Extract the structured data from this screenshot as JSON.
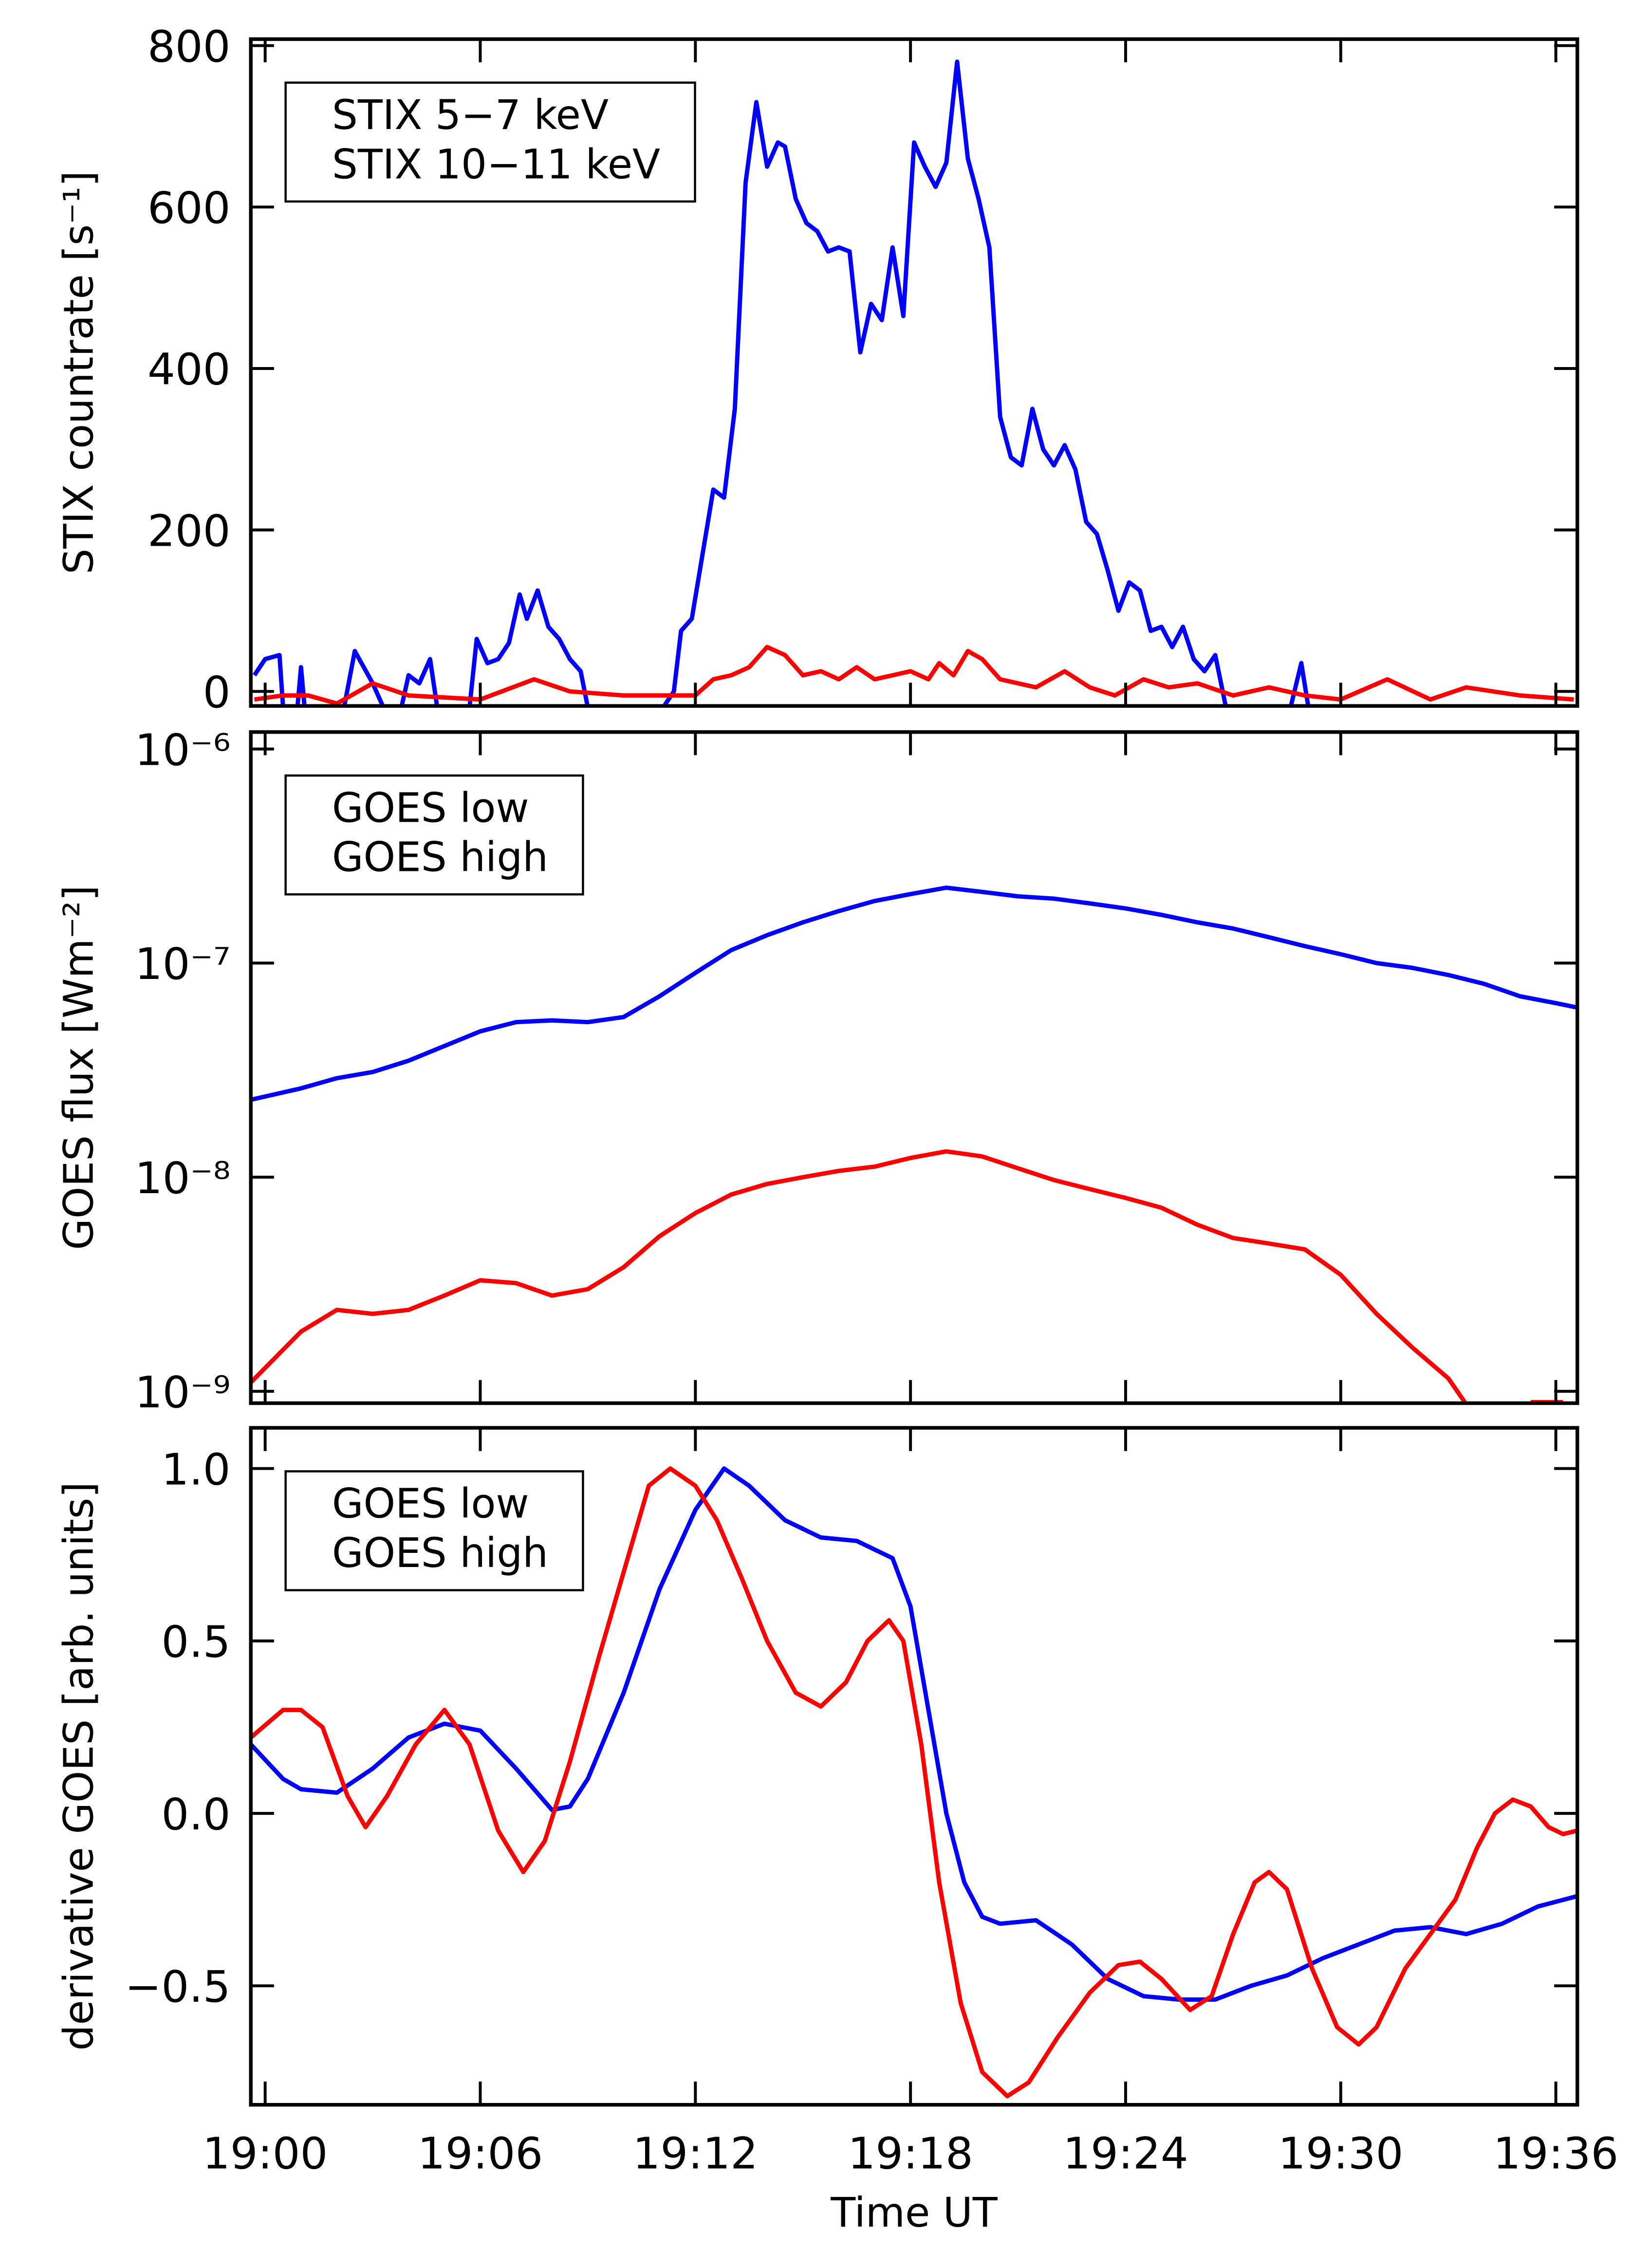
{
  "chart_data": [
    {
      "type": "line",
      "ylabel": "STIX countrate [s⁻¹]",
      "legend": "top-left",
      "xlim": [
        -0.4,
        36.6
      ],
      "xticks": [
        0,
        6,
        12,
        18,
        24,
        30,
        36
      ],
      "ylim": [
        -18,
        808
      ],
      "yticks": [
        0,
        200,
        400,
        600,
        800
      ],
      "series": [
        {
          "name": "STIX 5−7 keV",
          "color": "#0000ff",
          "x": [
            -0.3,
            0,
            0.4,
            0.5,
            0.9,
            1.0,
            1.1,
            2.2,
            2.5,
            3.0,
            3.3,
            3.8,
            4.0,
            4.3,
            4.6,
            4.8,
            5.7,
            5.9,
            6.2,
            6.5,
            6.8,
            7.1,
            7.3,
            7.6,
            7.9,
            8.2,
            8.5,
            8.8,
            9.0,
            11.1,
            11.4,
            11.6,
            11.9,
            12.2,
            12.5,
            12.8,
            13.1,
            13.4,
            13.7,
            14.0,
            14.3,
            14.5,
            14.8,
            15.1,
            15.4,
            15.7,
            16.0,
            16.3,
            16.6,
            16.9,
            17.2,
            17.5,
            17.8,
            18.1,
            18.4,
            18.7,
            19.0,
            19.3,
            19.6,
            19.9,
            20.2,
            20.5,
            20.8,
            21.1,
            21.4,
            21.7,
            22.0,
            22.3,
            22.6,
            22.9,
            23.2,
            23.5,
            23.8,
            24.1,
            24.4,
            24.7,
            25.0,
            25.3,
            25.6,
            25.9,
            26.2,
            26.5,
            26.8,
            28.6,
            28.9,
            29.1,
            36.5
          ],
          "values": [
            20,
            40,
            45,
            -20,
            -20,
            30,
            -20,
            -20,
            50,
            10,
            -20,
            -20,
            20,
            10,
            40,
            -20,
            -20,
            65,
            35,
            40,
            60,
            120,
            90,
            125,
            80,
            65,
            40,
            25,
            -20,
            -20,
            0,
            75,
            90,
            170,
            250,
            240,
            350,
            630,
            730,
            650,
            680,
            675,
            610,
            580,
            570,
            545,
            550,
            545,
            420,
            480,
            460,
            550,
            465,
            680,
            650,
            625,
            655,
            780,
            660,
            610,
            550,
            340,
            290,
            280,
            350,
            300,
            280,
            305,
            275,
            210,
            195,
            150,
            100,
            135,
            125,
            75,
            80,
            55,
            80,
            40,
            25,
            45,
            -20,
            -20,
            35,
            -20,
            -20
          ]
        },
        {
          "name": "STIX 10−11 keV",
          "color": "#ff0000",
          "x": [
            -0.3,
            0.5,
            1.2,
            2.0,
            3.0,
            4.0,
            6.0,
            7.5,
            8.5,
            10.0,
            12.0,
            12.5,
            13.0,
            13.5,
            14.0,
            14.5,
            15.0,
            15.5,
            16.0,
            16.5,
            17.0,
            18.0,
            18.5,
            18.8,
            19.2,
            19.6,
            20.0,
            20.5,
            21.5,
            22.3,
            23.0,
            23.7,
            24.5,
            25.2,
            26.0,
            27.0,
            28.0,
            29.0,
            30.0,
            31.3,
            32.5,
            33.5,
            35.0,
            36.5
          ],
          "values": [
            -10,
            -5,
            -5,
            -15,
            10,
            -5,
            -10,
            15,
            0,
            -5,
            -5,
            15,
            20,
            30,
            55,
            45,
            20,
            25,
            15,
            30,
            15,
            25,
            15,
            35,
            20,
            50,
            40,
            15,
            5,
            25,
            5,
            -5,
            15,
            5,
            10,
            -5,
            5,
            -5,
            -10,
            15,
            -10,
            5,
            -5,
            -10
          ]
        }
      ]
    },
    {
      "type": "line",
      "ylabel": "GOES flux [Wm⁻²]",
      "legend": "top-left",
      "log_y": true,
      "xlim": [
        -0.4,
        36.6
      ],
      "xticks": [
        0,
        6,
        12,
        18,
        24,
        30,
        36
      ],
      "ylim": [
        8.8e-10,
        1.2e-06
      ],
      "yticks": [
        {
          "value": 1e-09,
          "label": "10⁻⁹"
        },
        {
          "value": 1e-08,
          "label": "10⁻⁸"
        },
        {
          "value": 1e-07,
          "label": "10⁻⁷"
        },
        {
          "value": 1e-06,
          "label": "10⁻⁶"
        }
      ],
      "series": [
        {
          "name": "GOES low",
          "color": "#0000ff",
          "x": [
            -0.4,
            1,
            2,
            3,
            4,
            5,
            6,
            7,
            8,
            9,
            10,
            11,
            12,
            13,
            14,
            15,
            16,
            17,
            18,
            19,
            20,
            21,
            22,
            23,
            24,
            25,
            26,
            27,
            28,
            29,
            30,
            31,
            32,
            33,
            34,
            35,
            36,
            36.6
          ],
          "values": [
            2.3e-08,
            2.6e-08,
            2.9e-08,
            3.1e-08,
            3.5e-08,
            4.1e-08,
            4.8e-08,
            5.3e-08,
            5.4e-08,
            5.3e-08,
            5.6e-08,
            7e-08,
            9e-08,
            1.15e-07,
            1.35e-07,
            1.55e-07,
            1.75e-07,
            1.95e-07,
            2.1e-07,
            2.25e-07,
            2.15e-07,
            2.05e-07,
            2e-07,
            1.9e-07,
            1.8e-07,
            1.68e-07,
            1.55e-07,
            1.45e-07,
            1.32e-07,
            1.2e-07,
            1.1e-07,
            1e-07,
            9.5e-08,
            8.8e-08,
            8e-08,
            7e-08,
            6.5e-08,
            6.2e-08
          ]
        },
        {
          "name": "GOES high",
          "color": "#ff0000",
          "x": [
            -0.4,
            1,
            2,
            3,
            4,
            5,
            6,
            7,
            8,
            9,
            10,
            11,
            12,
            13,
            14,
            15,
            16,
            17,
            18,
            19,
            20,
            21,
            22,
            23,
            24,
            25,
            26,
            27,
            28,
            29,
            30,
            31,
            32,
            33,
            33.5,
            34,
            35.3,
            36.2
          ],
          "values": [
            1.1e-09,
            1.9e-09,
            2.4e-09,
            2.3e-09,
            2.4e-09,
            2.8e-09,
            3.3e-09,
            3.2e-09,
            2.8e-09,
            3e-09,
            3.8e-09,
            5.3e-09,
            6.8e-09,
            8.3e-09,
            9.3e-09,
            1e-08,
            1.07e-08,
            1.12e-08,
            1.23e-08,
            1.32e-08,
            1.25e-08,
            1.1e-08,
            9.7e-09,
            8.8e-09,
            8e-09,
            7.2e-09,
            6e-09,
            5.2e-09,
            4.9e-09,
            4.6e-09,
            3.5e-09,
            2.3e-09,
            1.6e-09,
            1.15e-09,
            8.7e-10,
            null,
            8.9e-10,
            8.9e-10
          ]
        }
      ]
    },
    {
      "type": "line",
      "ylabel": "derivative GOES [arb. units]",
      "xlabel": "Time UT",
      "legend": "top-left",
      "xlim": [
        -0.4,
        36.6
      ],
      "xticks": [
        {
          "value": 0,
          "label": "19:00"
        },
        {
          "value": 6,
          "label": "19:06"
        },
        {
          "value": 12,
          "label": "19:12"
        },
        {
          "value": 18,
          "label": "19:18"
        },
        {
          "value": 24,
          "label": "19:24"
        },
        {
          "value": 30,
          "label": "19:30"
        },
        {
          "value": 36,
          "label": "19:36"
        }
      ],
      "ylim": [
        -0.845,
        1.118
      ],
      "yticks": [
        {
          "value": -0.5,
          "label": "−0.5"
        },
        {
          "value": 0,
          "label": "0.0"
        },
        {
          "value": 0.5,
          "label": "0.5"
        },
        {
          "value": 1,
          "label": "1.0"
        }
      ],
      "series": [
        {
          "name": "GOES low",
          "color": "#0000ff",
          "x": [
            -0.4,
            0.5,
            1,
            2,
            3,
            4,
            5,
            6,
            7,
            8,
            8.5,
            9,
            10,
            11,
            12,
            12.8,
            13.5,
            14.5,
            15.5,
            16.5,
            17.5,
            18,
            18.5,
            19,
            19.5,
            20,
            20.5,
            21.5,
            22.5,
            23.5,
            24.5,
            25.5,
            26.5,
            27.5,
            28.5,
            29.5,
            30.5,
            31.5,
            32.5,
            33.5,
            34.5,
            35.5,
            36.6
          ],
          "values": [
            0.2,
            0.1,
            0.07,
            0.06,
            0.13,
            0.22,
            0.26,
            0.24,
            0.13,
            0.01,
            0.02,
            0.1,
            0.35,
            0.65,
            0.88,
            1.0,
            0.95,
            0.85,
            0.8,
            0.79,
            0.74,
            0.6,
            0.3,
            0.0,
            -0.2,
            -0.3,
            -0.32,
            -0.31,
            -0.38,
            -0.48,
            -0.53,
            -0.54,
            -0.54,
            -0.5,
            -0.47,
            -0.42,
            -0.38,
            -0.34,
            -0.33,
            -0.35,
            -0.32,
            -0.27,
            -0.24
          ]
        },
        {
          "name": "GOES high",
          "color": "#ff0000",
          "x": [
            -0.4,
            0.5,
            1,
            1.6,
            2.3,
            2.8,
            3.4,
            4.2,
            5,
            5.7,
            6.5,
            7.2,
            7.8,
            8.5,
            9.3,
            10,
            10.7,
            11.3,
            12,
            12.6,
            13.3,
            14,
            14.8,
            15.5,
            16.2,
            16.8,
            17.4,
            17.8,
            18.3,
            18.8,
            19.4,
            20,
            20.7,
            21.3,
            22.1,
            23,
            23.8,
            24.4,
            25,
            25.8,
            26.4,
            27,
            27.6,
            28,
            28.5,
            29.2,
            29.9,
            30.5,
            31,
            31.8,
            32.5,
            33.2,
            33.8,
            34.3,
            34.8,
            35.3,
            35.8,
            36.2,
            36.6
          ],
          "values": [
            0.22,
            0.3,
            0.3,
            0.25,
            0.05,
            -0.04,
            0.05,
            0.2,
            0.3,
            0.2,
            -0.05,
            -0.17,
            -0.08,
            0.15,
            0.45,
            0.7,
            0.95,
            1.0,
            0.95,
            0.85,
            0.68,
            0.5,
            0.35,
            0.31,
            0.38,
            0.5,
            0.56,
            0.5,
            0.2,
            -0.2,
            -0.55,
            -0.75,
            -0.82,
            -0.78,
            -0.65,
            -0.52,
            -0.44,
            -0.43,
            -0.48,
            -0.57,
            -0.53,
            -0.35,
            -0.2,
            -0.17,
            -0.22,
            -0.45,
            -0.62,
            -0.67,
            -0.62,
            -0.45,
            -0.35,
            -0.25,
            -0.1,
            0.0,
            0.04,
            0.02,
            -0.04,
            -0.06,
            -0.05
          ]
        }
      ]
    }
  ]
}
